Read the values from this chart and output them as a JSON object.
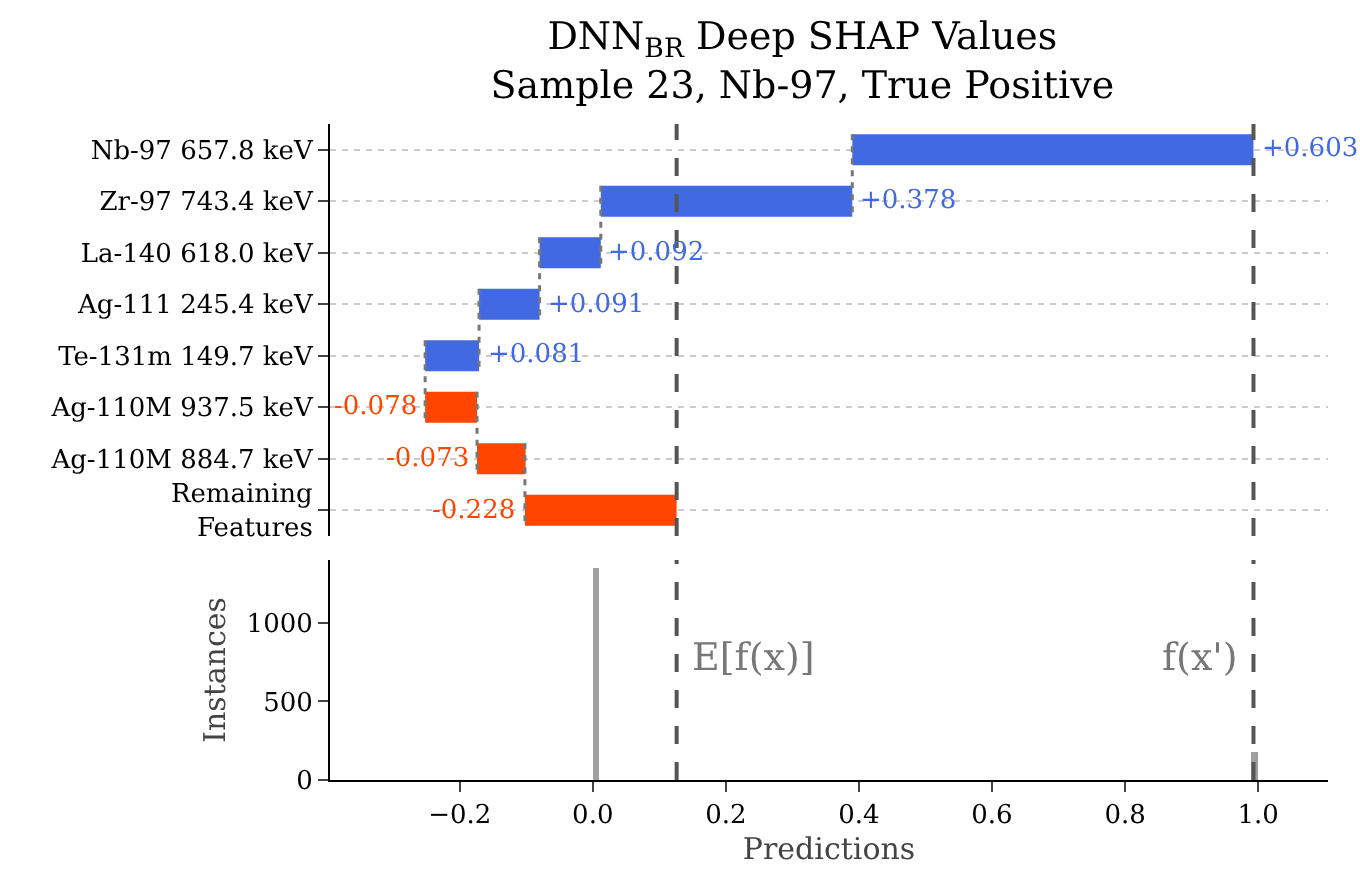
{
  "chart_data": [
    {
      "type": "bar",
      "orientation": "horizontal",
      "title": "DNN$_{BR}$ Deep SHAP Values",
      "subtitle": "Sample 23, Nb-97, True Positive",
      "categories": [
        "Nb-97 657.8 keV",
        "Zr-97 743.4 keV",
        "La-140 618.0 keV",
        "Ag-111 245.4 keV",
        "Te-131m 149.7 keV",
        "Ag-110M 937.5 keV",
        "Ag-110M 884.7 keV",
        "Remaining\nFeatures"
      ],
      "values": [
        0.603,
        0.378,
        0.092,
        0.091,
        0.081,
        -0.078,
        -0.073,
        -0.228
      ],
      "base": [
        0.39,
        0.012,
        -0.08,
        -0.171,
        -0.252,
        -0.174,
        -0.101,
        0.126
      ],
      "colors": [
        "#4169e1",
        "#4169e1",
        "#4169e1",
        "#4169e1",
        "#4169e1",
        "#ff4500",
        "#ff4500",
        "#ff4500"
      ],
      "value_labels": [
        "+0.603",
        "+0.378",
        "+0.092",
        "+0.091",
        "+0.081",
        "-0.078",
        "-0.073",
        "-0.228"
      ],
      "xlim": [
        -0.395,
        1.105
      ],
      "grid": "y",
      "tick_labels": "y",
      "ref_lines": [
        {
          "axis": "x",
          "value": 0.126,
          "color": "#555555",
          "line_style": "dashed"
        },
        {
          "axis": "x",
          "value": 0.993,
          "color": "#555555",
          "line_style": "dashed"
        }
      ]
    },
    {
      "type": "histogram",
      "xlabel": "Predictions",
      "ylabel": "Instances",
      "color": "#a0a0a0",
      "bins": [
        0,
        0.01,
        0.02,
        0.03,
        0.04,
        0.05,
        0.06,
        0.07,
        0.08,
        0.09,
        0.1,
        0.11,
        0.12,
        0.13,
        0.14,
        0.15,
        0.16,
        0.17,
        0.18,
        0.19,
        0.2,
        0.21,
        0.22,
        0.23,
        0.24,
        0.25,
        0.26,
        0.27,
        0.28,
        0.29,
        0.3,
        0.31,
        0.32,
        0.33,
        0.34,
        0.35,
        0.36,
        0.37,
        0.38,
        0.39,
        0.4,
        0.41,
        0.42,
        0.43,
        0.44,
        0.45,
        0.46,
        0.47,
        0.48,
        0.49,
        0.5,
        0.51,
        0.52,
        0.53,
        0.54,
        0.55,
        0.56,
        0.57,
        0.58,
        0.59,
        0.6,
        0.61,
        0.62,
        0.63,
        0.64,
        0.65,
        0.66,
        0.67,
        0.68,
        0.69,
        0.7,
        0.71,
        0.72,
        0.73,
        0.74,
        0.75,
        0.76,
        0.77,
        0.78,
        0.79,
        0.8,
        0.81,
        0.82,
        0.83,
        0.84,
        0.85,
        0.86,
        0.87,
        0.88,
        0.89,
        0.9,
        0.91,
        0.92,
        0.93,
        0.94,
        0.95,
        0.96,
        0.97,
        0.98,
        0.99,
        1.0
      ],
      "values": [
        1350,
        0,
        0,
        0,
        0,
        0,
        0,
        0,
        0,
        0,
        0,
        0,
        0,
        0,
        0,
        0,
        0,
        0,
        0,
        0,
        0,
        0,
        0,
        0,
        0,
        0,
        0,
        0,
        0,
        0,
        0,
        0,
        0,
        0,
        0,
        0,
        0,
        0,
        0,
        0,
        0,
        0,
        0,
        0,
        0,
        0,
        0,
        0,
        0,
        0,
        0,
        0,
        0,
        0,
        0,
        0,
        0,
        0,
        0,
        0,
        0,
        0,
        0,
        0,
        0,
        0,
        0,
        0,
        0,
        0,
        0,
        0,
        0,
        0,
        0,
        0,
        0,
        0,
        0,
        0,
        0,
        0,
        0,
        0,
        0,
        0,
        0,
        0,
        0,
        0,
        0,
        0,
        0,
        0,
        0,
        0,
        0,
        0,
        0,
        180
      ],
      "xlim": [
        -0.395,
        1.105
      ],
      "ylim": [
        0,
        1400
      ],
      "xticks": [
        {
          "value": -0.2,
          "label": "−0.2"
        },
        {
          "value": 0,
          "label": "0.0"
        },
        {
          "value": 0.2,
          "label": "0.2"
        },
        {
          "value": 0.4,
          "label": "0.4"
        },
        {
          "value": 0.6,
          "label": "0.6"
        },
        {
          "value": 0.8,
          "label": "0.8"
        },
        {
          "value": 1,
          "label": "1.0"
        }
      ],
      "yticks": [
        0,
        500,
        1000
      ],
      "grid": false,
      "ref_lines": [
        {
          "axis": "x",
          "value": 0.126,
          "label": "E[f(x)]",
          "color": "#555555",
          "line_style": "dashed"
        },
        {
          "axis": "x",
          "value": 0.993,
          "label": "f(x')",
          "color": "#555555",
          "line_style": "dashed"
        }
      ]
    }
  ]
}
